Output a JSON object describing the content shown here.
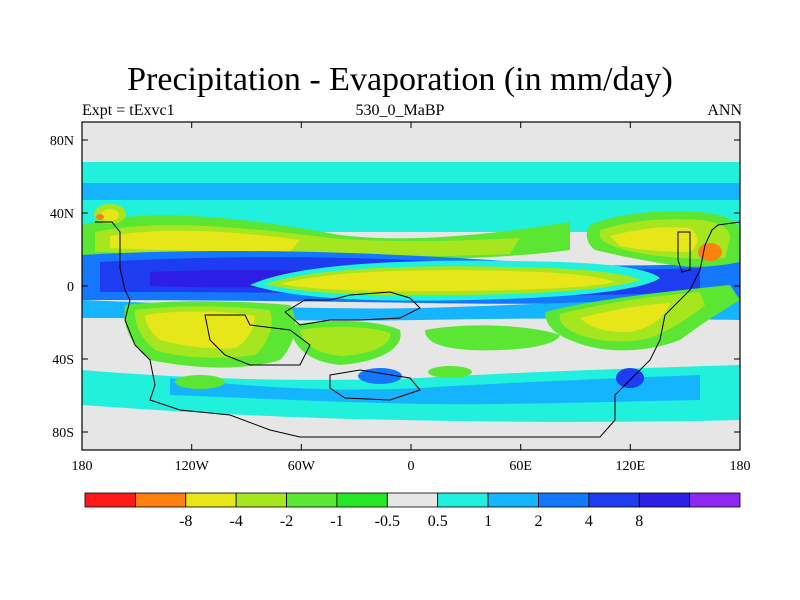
{
  "title": "Precipitation - Evaporation (in mm/day)",
  "subtitle_left": "Expt = tExvc1",
  "subtitle_center": "530_0_MaBP",
  "subtitle_right": "ANN",
  "lat_labels": [
    "80N",
    "40N",
    "0",
    "40S",
    "80S"
  ],
  "lon_labels": [
    "180",
    "120W",
    "60W",
    "0",
    "60E",
    "120E",
    "180"
  ],
  "colorbar": {
    "colors": [
      "#ff1a1a",
      "#ff7f11",
      "#e6e619",
      "#a6e61e",
      "#5ae632",
      "#28e628",
      "#e6e6e6",
      "#20f0dc",
      "#14b4ff",
      "#1478ff",
      "#1e3cf0",
      "#2d1ee6",
      "#8c28f0"
    ],
    "labels": [
      "-8",
      "-4",
      "-2",
      "-1",
      "-0.5",
      "0.5",
      "1",
      "2",
      "4",
      "8"
    ]
  },
  "chart_data": {
    "type": "heatmap",
    "title": "Precipitation - Evaporation (in mm/day)",
    "variable": "P-E",
    "units": "mm/day",
    "x_range": [
      -180,
      180
    ],
    "y_range": [
      -90,
      90
    ],
    "contour_levels": [
      -8,
      -4,
      -2,
      -1,
      -0.5,
      0.5,
      1,
      2,
      4,
      8
    ],
    "xticks": [
      "180",
      "120W",
      "60W",
      "0",
      "60E",
      "120E",
      "180"
    ],
    "yticks": [
      "80N",
      "40N",
      "0",
      "40S",
      "80S"
    ]
  }
}
